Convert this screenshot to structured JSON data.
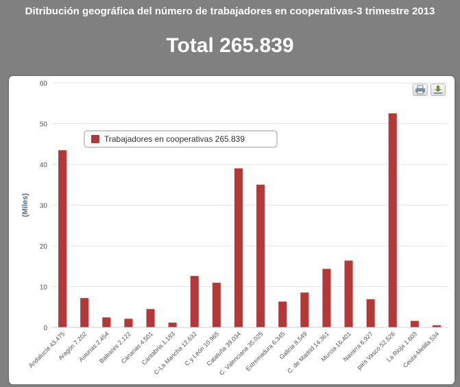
{
  "header": {
    "title": "Ditribución geográfica del número de trabajadores en cooperativas-3 trimestre 2013",
    "total": "Total 265.839"
  },
  "toolbar": {
    "print_icon": "print-icon",
    "export_icon": "download-icon"
  },
  "colors": {
    "bar": "#b03a3a",
    "background": "#808080",
    "grid": "#e6e6e6"
  },
  "chart_data": {
    "type": "bar",
    "ylabel": "(Miles)",
    "ylim": [
      0,
      60
    ],
    "yticks": [
      0,
      10,
      20,
      30,
      40,
      50,
      60
    ],
    "grid": true,
    "legend_position": "top-left",
    "series": [
      {
        "name": "Trabajadores en cooperativas 265.839",
        "values": [
          43.475,
          7.202,
          2.454,
          2.122,
          4.501,
          1.183,
          12.632,
          10.965,
          39.034,
          35.025,
          6.345,
          8.549,
          14.361,
          16.401,
          6.927,
          52.526,
          1.603,
          0.534
        ]
      }
    ],
    "categories": [
      "Andalucía 43.475",
      "Aragón 7.202",
      "Asturias 2.454",
      "Baleares 2.122",
      "Canarias 4.501",
      "Cantabria 1.183",
      "C-La Mancha 12.632",
      "C y León 10.965",
      "Cataluña 39.034",
      "C. Valenciana 35.025",
      "Extremadura 6.345",
      "Galicia 8.549",
      "C. de Madrid 14.361",
      "Murcia 16.401",
      "Navarra 6.927",
      "país Vasco 52.526",
      "La Rioja 1.603",
      "Ceuta-Melilla 534"
    ]
  }
}
